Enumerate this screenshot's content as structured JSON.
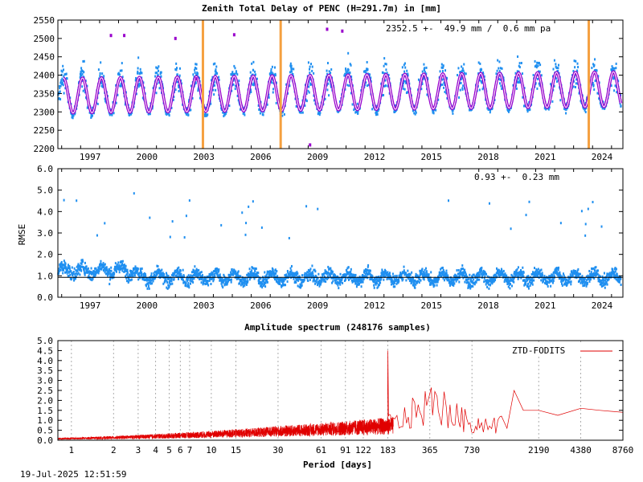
{
  "chart_data": [
    {
      "type": "scatter",
      "title": "Zenith Total Delay of PENC (H=291.7m) in [mm]",
      "annotation": "2352.5 +-  49.9 mm /  0.6 mm pa",
      "xlabel": "",
      "ylabel": "",
      "xlim": [
        1995.8,
        2025.6
      ],
      "ylim": [
        2200,
        2550
      ],
      "yticks": [
        2200,
        2250,
        2300,
        2350,
        2400,
        2450,
        2500,
        2550
      ],
      "xticks": [
        "1997",
        "2000",
        "2003",
        "2006",
        "2009",
        "2012",
        "2015",
        "2018",
        "2021",
        "2024"
      ],
      "grid": false,
      "mean": 2352.5,
      "std": 49.9,
      "trend_mm_pa": 0.6,
      "seasonal_amplitude": 50,
      "seasonal_peak_month_fraction": 0.1,
      "events": [
        2003.45,
        2007.55,
        2023.8
      ],
      "colors": {
        "points": "#1f8ff0",
        "model": "#9900cc",
        "outliers": "#9900cc",
        "events": "#f5a040"
      }
    },
    {
      "type": "scatter",
      "title": "",
      "annotation": "0.93 +-  0.23 mm",
      "xlabel": "",
      "ylabel": "RMSE",
      "xlim": [
        1995.8,
        2025.6
      ],
      "ylim": [
        0,
        6
      ],
      "yticks": [
        "0.0",
        "1.0",
        "2.0",
        "3.0",
        "4.0",
        "5.0",
        "6.0"
      ],
      "xticks": [
        "1997",
        "2000",
        "2003",
        "2006",
        "2009",
        "2012",
        "2015",
        "2018",
        "2021",
        "2024"
      ],
      "mean": 0.93,
      "std": 0.23,
      "grid": false,
      "colors": {
        "points": "#1f8ff0",
        "mean_line": "#000000"
      }
    },
    {
      "type": "line",
      "title": "Amplitude spectrum (248176 samples)",
      "xlabel": "Period [days]",
      "ylabel": "",
      "x_scale": "log",
      "xlim": [
        0.8,
        8760
      ],
      "ylim": [
        0,
        5
      ],
      "yticks": [
        "0.0",
        "0.5",
        "1.0",
        "1.5",
        "2.0",
        "2.5",
        "3.0",
        "3.5",
        "4.0",
        "4.5",
        "5.0"
      ],
      "xticks": [
        "1",
        "2",
        "3",
        "4",
        "5",
        "6",
        "7",
        "10",
        "15",
        "30",
        "61",
        "91",
        "122",
        "183",
        "365",
        "730",
        "2190",
        "4380",
        "8760"
      ],
      "grid": "vertical-dashed",
      "legend": {
        "label": "ZTD-FODITS",
        "placement": "top-right"
      },
      "peaks": [
        {
          "period": 1,
          "amp": 0.25
        },
        {
          "period": 183,
          "amp": 4.5
        },
        {
          "period": 365,
          "amp": 2.6
        },
        {
          "period": 730,
          "amp": 1.3
        },
        {
          "period": 1460,
          "amp": 2.5
        },
        {
          "period": 2190,
          "amp": 1.5
        },
        {
          "period": 4380,
          "amp": 1.6
        },
        {
          "period": 8760,
          "amp": 1.4
        }
      ],
      "colors": {
        "line": "#e00000"
      }
    }
  ],
  "footer": {
    "timestamp": "19-Jul-2025 12:51:59"
  }
}
